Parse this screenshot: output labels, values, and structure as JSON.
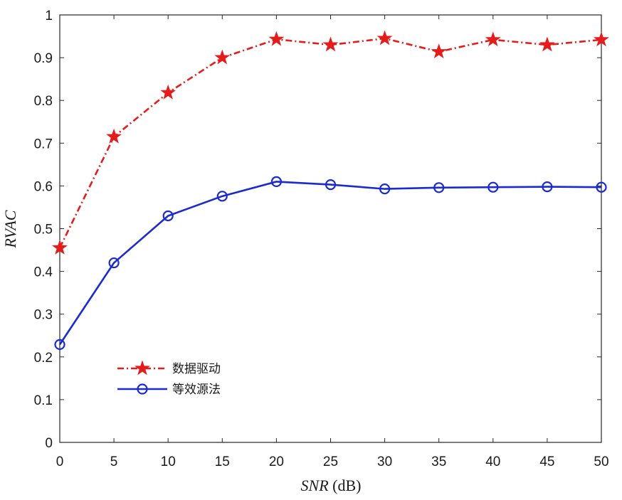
{
  "chart_data": {
    "type": "line",
    "title": "",
    "xlabel": {
      "italic": "SNR",
      "plain": " (dB)"
    },
    "ylabel": "RVAC",
    "xlim": [
      0,
      50
    ],
    "ylim": [
      0,
      1
    ],
    "xticks": [
      0,
      5,
      10,
      15,
      20,
      25,
      30,
      35,
      40,
      45,
      50
    ],
    "yticks": [
      0,
      0.1,
      0.2,
      0.3,
      0.4,
      0.5,
      0.6,
      0.7,
      0.8,
      0.9,
      1
    ],
    "grid": false,
    "legend_position": "lower-left",
    "x": [
      0,
      5,
      10,
      15,
      20,
      25,
      30,
      35,
      40,
      45,
      50
    ],
    "series": [
      {
        "name": "数据驱动",
        "color": "#e41c1c",
        "line_style": "dash-dot",
        "marker": "star",
        "values": [
          0.455,
          0.715,
          0.818,
          0.9,
          0.943,
          0.93,
          0.945,
          0.914,
          0.942,
          0.93,
          0.942
        ]
      },
      {
        "name": "等效源法",
        "color": "#1a2bd0",
        "line_style": "solid",
        "marker": "circle",
        "values": [
          0.229,
          0.42,
          0.53,
          0.576,
          0.61,
          0.603,
          0.593,
          0.596,
          0.597,
          0.598,
          0.597
        ]
      }
    ]
  }
}
